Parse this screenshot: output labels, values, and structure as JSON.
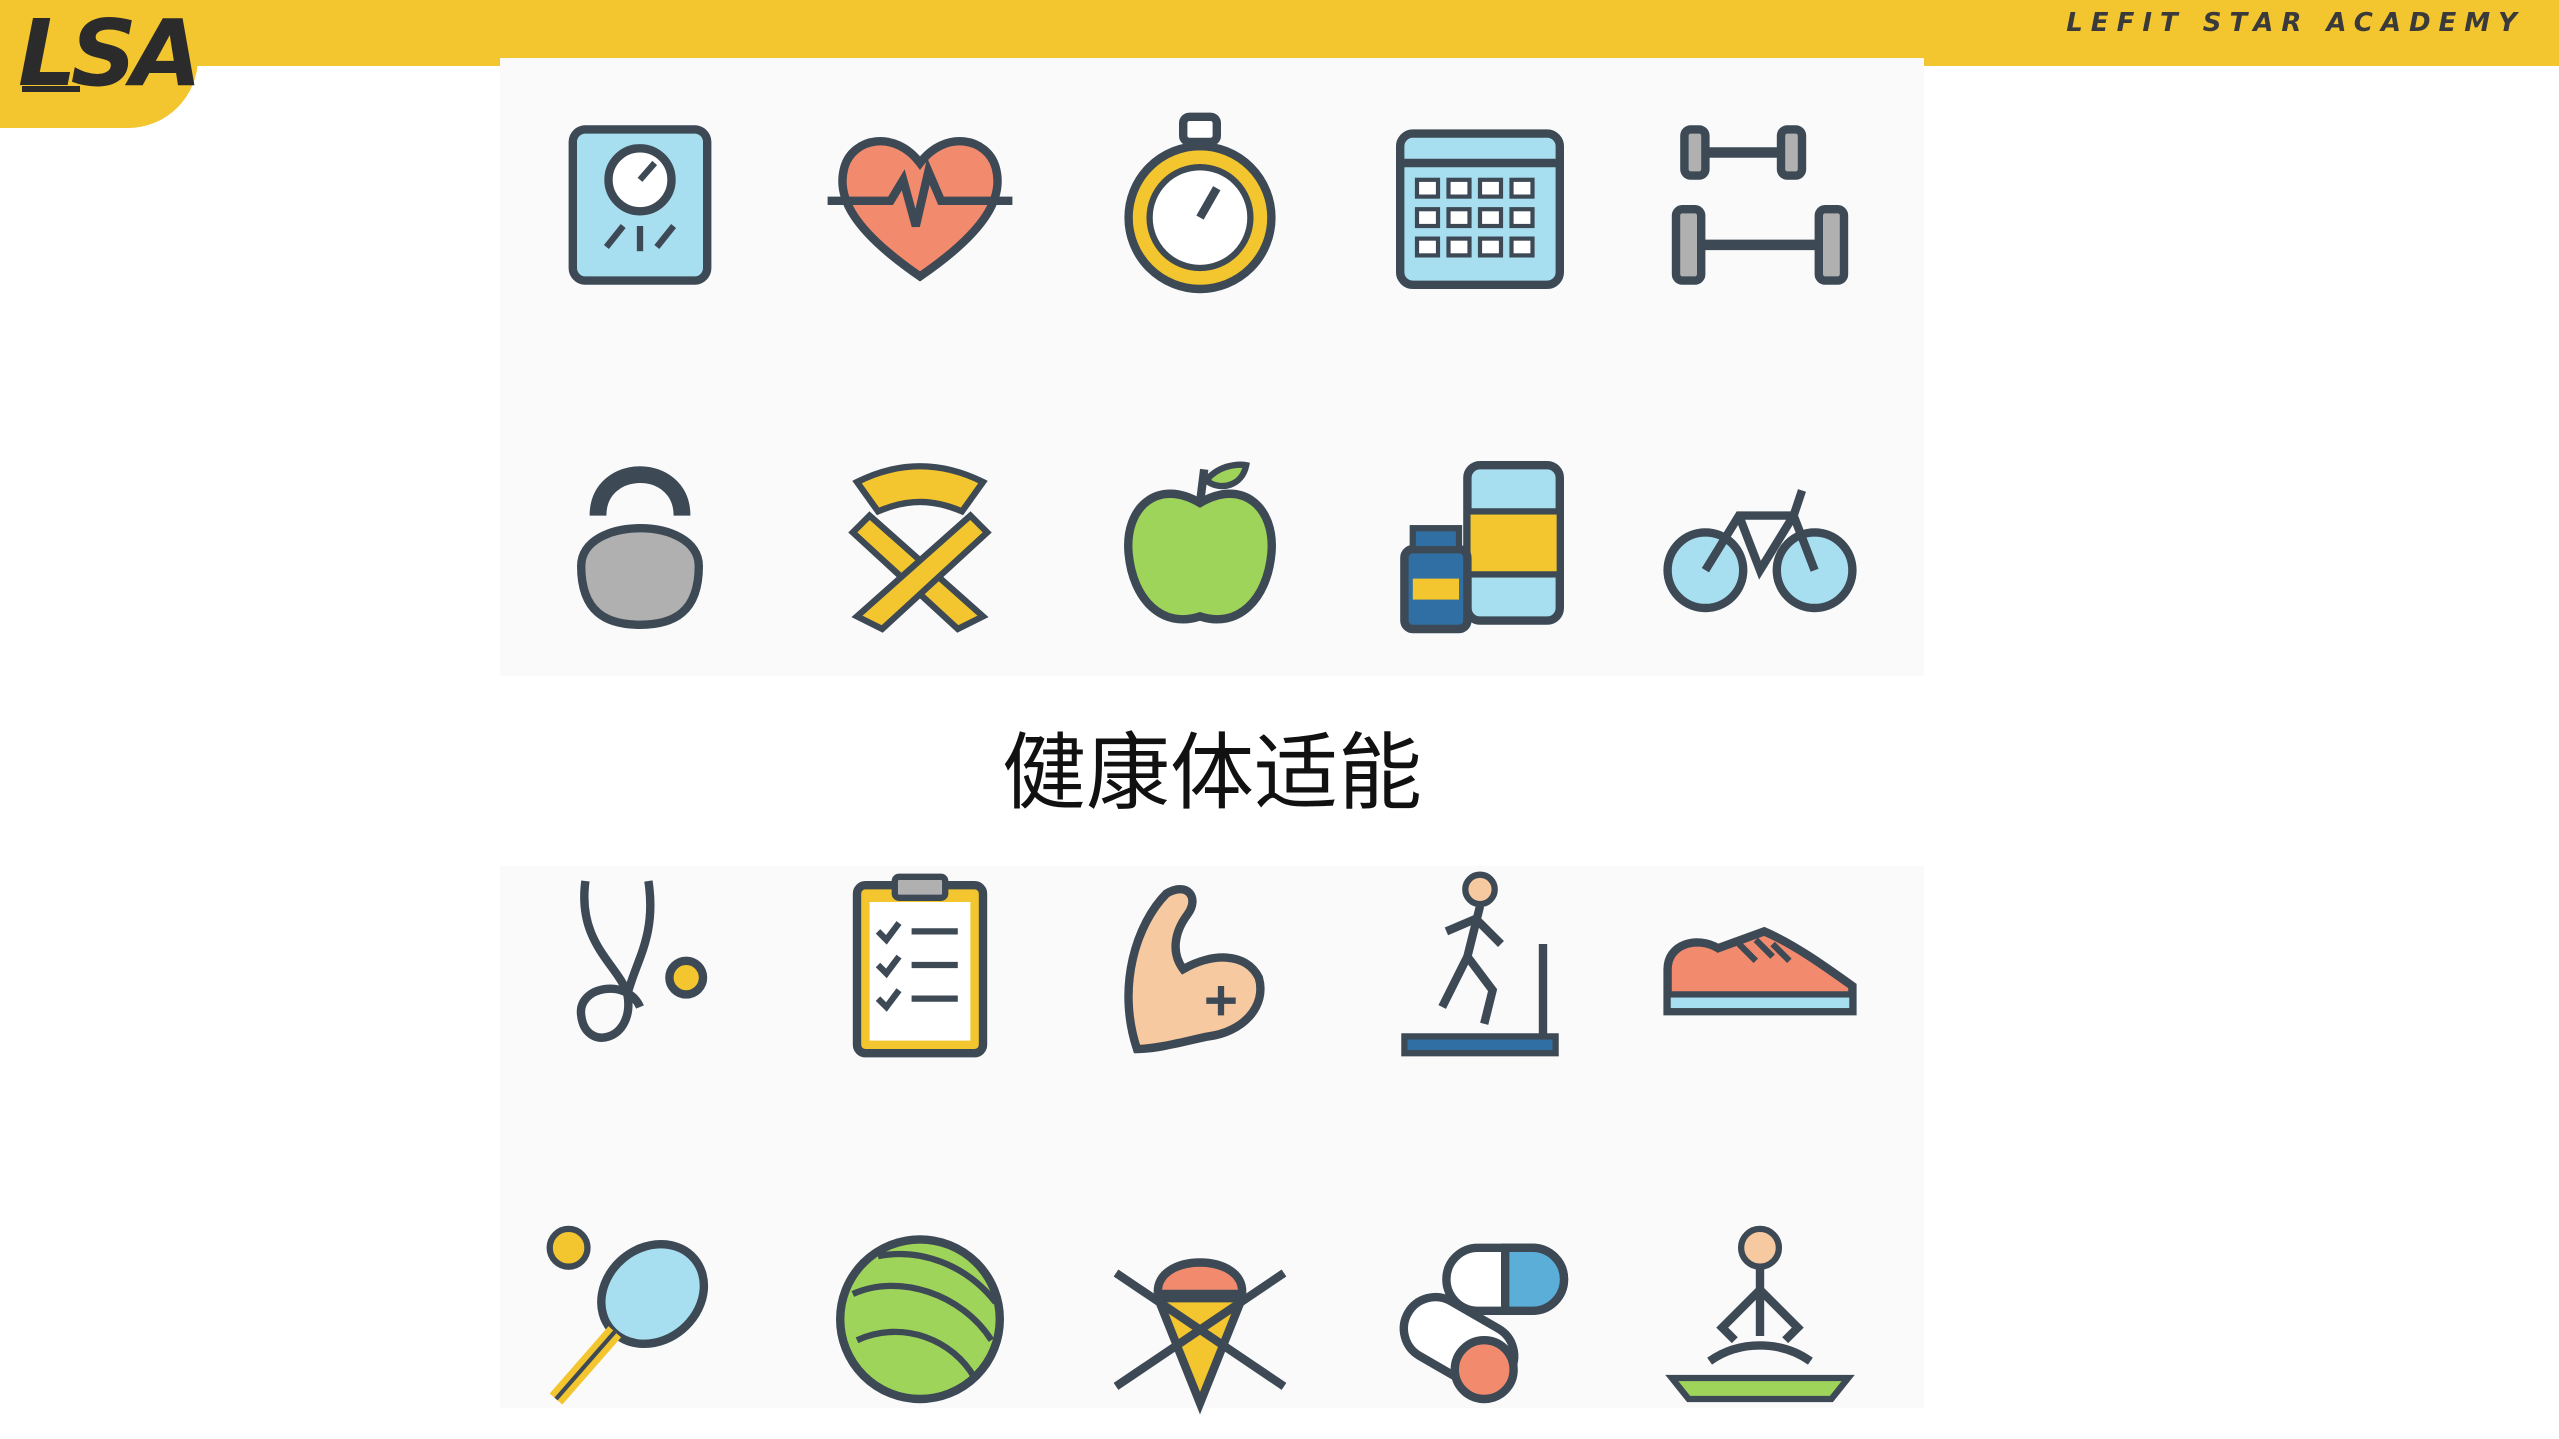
{
  "header": {
    "logo_text": "LSA",
    "brand_text": "LEFIT STAR ACADEMY",
    "accent_color": "#f3c52e"
  },
  "slide": {
    "title": "健康体适能"
  },
  "icons": [
    "scale-icon",
    "heart-rate-icon",
    "stopwatch-icon",
    "calendar-icon",
    "dumbbells-icon",
    "kettlebell-icon",
    "measuring-tape-icon",
    "apple-icon",
    "supplements-icon",
    "bicycle-icon",
    "stethoscope-icon",
    "checklist-icon",
    "muscle-arm-icon",
    "treadmill-icon",
    "sneaker-icon",
    "tennis-racket-icon",
    "exercise-ball-icon",
    "no-ice-cream-icon",
    "pills-icon",
    "yoga-icon"
  ]
}
